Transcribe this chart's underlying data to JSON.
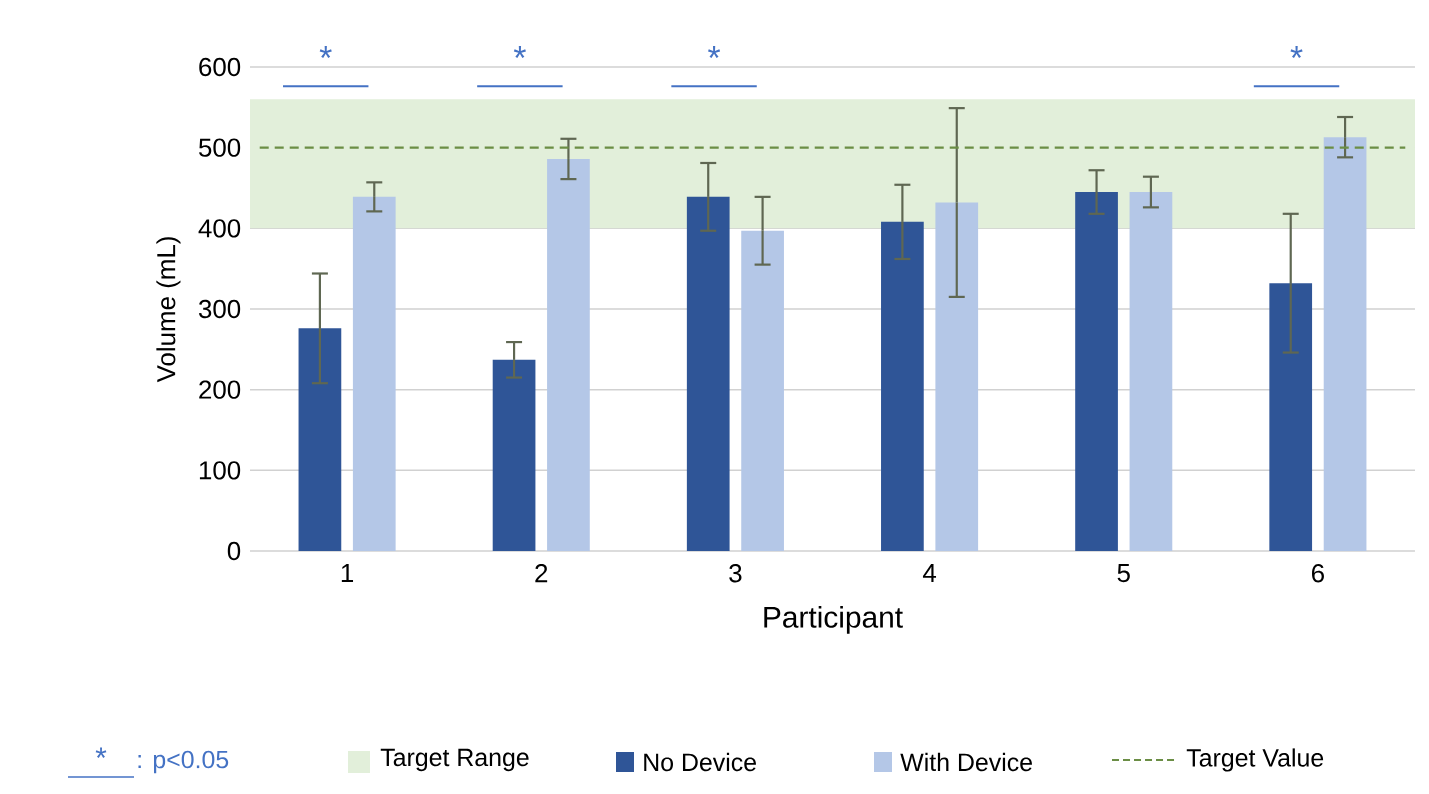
{
  "chart_data": {
    "type": "bar",
    "xlabel": "Participant",
    "ylabel": "Volume (mL)",
    "categories": [
      "1",
      "2",
      "3",
      "4",
      "5",
      "6"
    ],
    "series": [
      {
        "name": "No Device",
        "color": "#2f5597",
        "values": [
          276,
          237,
          439,
          408,
          445,
          332
        ],
        "errors": [
          68,
          22,
          42,
          46,
          27,
          86
        ]
      },
      {
        "name": "With Device",
        "color": "#b4c7e7",
        "values": [
          439,
          486,
          397,
          432,
          445,
          513
        ],
        "errors": [
          18,
          25,
          42,
          117,
          19,
          25
        ]
      }
    ],
    "ylim": [
      0,
      600
    ],
    "yticks": [
      0,
      100,
      200,
      300,
      400,
      500,
      600
    ],
    "grid": "y",
    "legend": "bottom",
    "bands": [
      {
        "axis": "y",
        "from": 400,
        "to": 560,
        "label": "Target Range",
        "color": "#e2efda"
      }
    ],
    "ref_lines": [
      {
        "axis": "y",
        "value": 500,
        "label": "Target Value",
        "color": "#6b8e45",
        "line_style": "dashed"
      }
    ],
    "annotations": [
      "*",
      "*",
      "*",
      "*",
      ": p<0.05"
    ]
  }
}
